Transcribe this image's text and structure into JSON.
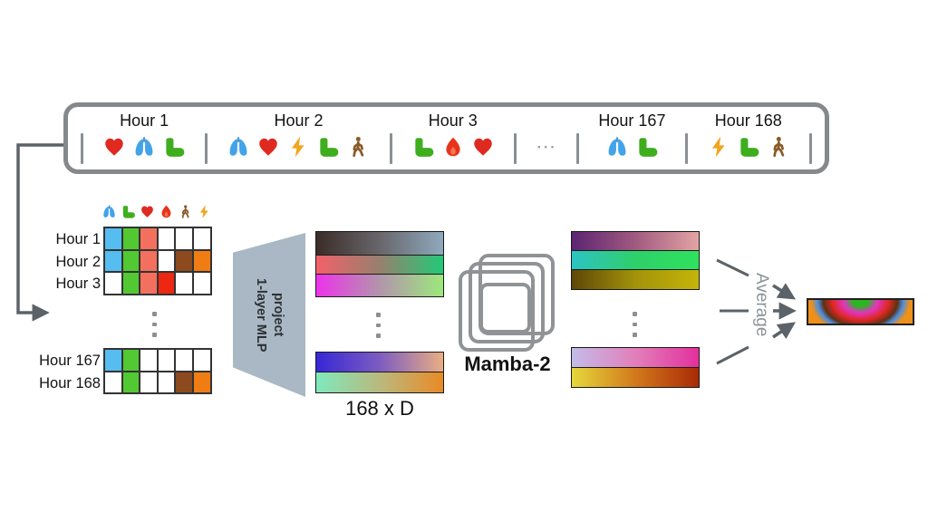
{
  "timeline": {
    "groups": [
      {
        "label": "Hour 1",
        "icons": [
          "heart",
          "lungs",
          "foot"
        ]
      },
      {
        "label": "Hour 2",
        "icons": [
          "lungs",
          "heart",
          "lightning",
          "foot",
          "walker"
        ]
      },
      {
        "label": "Hour 3",
        "icons": [
          "foot",
          "fire",
          "heart"
        ]
      },
      {
        "label": "",
        "ellipsis": "⋯"
      },
      {
        "label": "Hour 167",
        "icons": [
          "lungs",
          "foot"
        ]
      },
      {
        "label": "Hour 168",
        "icons": [
          "lightning",
          "foot",
          "walker"
        ]
      }
    ],
    "border_color": "#85898c",
    "separator_color": "#8a8f93"
  },
  "feature_grid": {
    "header_icons": [
      "lungs",
      "foot",
      "heart",
      "fire",
      "walker",
      "lightning"
    ],
    "top_rows": [
      {
        "label": "Hour 1",
        "cells": [
          "blue",
          "green",
          "salmon",
          "white",
          "white",
          "white"
        ]
      },
      {
        "label": "Hour 2",
        "cells": [
          "blue",
          "green",
          "salmon",
          "white",
          "brown",
          "orange"
        ]
      },
      {
        "label": "Hour 3",
        "cells": [
          "white",
          "green",
          "salmon",
          "red",
          "white",
          "white"
        ]
      }
    ],
    "bottom_rows": [
      {
        "label": "Hour 167",
        "cells": [
          "blue",
          "green",
          "white",
          "white",
          "white",
          "white"
        ]
      },
      {
        "label": "Hour 168",
        "cells": [
          "white",
          "green",
          "white",
          "white",
          "brown",
          "orange"
        ]
      }
    ],
    "cell_colors": {
      "blue": "#56bdf0",
      "green": "#52c932",
      "salmon": "#f3705e",
      "red": "#ee2712",
      "brown": "#8c4a1e",
      "orange": "#ef7d14",
      "white": "#ffffff"
    }
  },
  "mlp": {
    "label_line1": "1-layer MLP",
    "label_line2": "project",
    "fill_color": "#a9b8c4"
  },
  "projection": {
    "dim_label": "168 x D",
    "top_bars": [
      {
        "colors": [
          "#3a2d28",
          "#68666b",
          "#8fa9bd"
        ]
      },
      {
        "colors": [
          "#f2616a",
          "#97806e",
          "#23c977"
        ]
      },
      {
        "colors": [
          "#ed32ea",
          "#b295ab",
          "#9ce87c"
        ]
      }
    ],
    "bottom_bars": [
      {
        "colors": [
          "#3627d6",
          "#7d5cc0",
          "#e9ae84"
        ]
      },
      {
        "colors": [
          "#7fe9bd",
          "#b9b97e",
          "#e98a25"
        ]
      }
    ]
  },
  "mamba": {
    "label": "Mamba-2",
    "outline_color": "#8f9396"
  },
  "mamba_output": {
    "top_bars": [
      {
        "colors": [
          "#5c2472",
          "#a05a80",
          "#e3a4a4"
        ]
      },
      {
        "colors": [
          "#2cc4c4",
          "#2ed06a",
          "#2fe25e"
        ]
      },
      {
        "colors": [
          "#5e4708",
          "#a3920a",
          "#c4b509"
        ]
      }
    ],
    "bottom_bars": [
      {
        "colors": [
          "#c3bce9",
          "#e27fba",
          "#e3309c"
        ]
      },
      {
        "colors": [
          "#e5d83b",
          "#d2791c",
          "#aa2a06"
        ]
      }
    ]
  },
  "average": {
    "label": "Average",
    "text_color": "#8c9499",
    "arrow_color": "#5b6368"
  },
  "embedding": {
    "gradient_colors": [
      "#2ab620",
      "#e135c0",
      "#df2722",
      "#5c3114",
      "#4a8fe2",
      "#ef9018"
    ],
    "border_color": "#202020"
  },
  "icon_colors": {
    "heart": "#df2a20",
    "lungs": "#42a3e8",
    "foot": "#3fae1e",
    "fire": "#e8331c",
    "fire_inner": "#f8764d",
    "walker": "#8a5a28",
    "lightning": "#f2a41c"
  }
}
